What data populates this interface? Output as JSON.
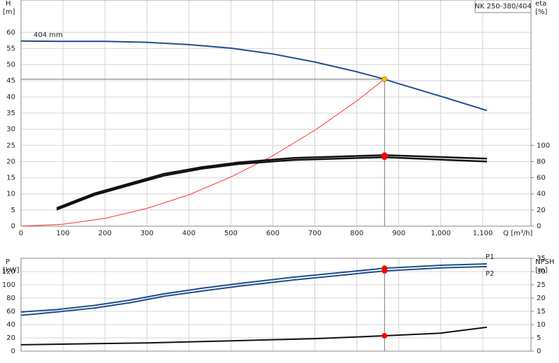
{
  "chart_data": [
    {
      "type": "line",
      "title": "NK 250-380/404",
      "xlabel": "Q [m³/h]",
      "ylabel": "H",
      "yunit": "[m]",
      "y2label": "eta",
      "y2unit": "[%]",
      "xlim": [
        0,
        1215
      ],
      "xticks": [
        0,
        100,
        200,
        300,
        400,
        500,
        600,
        700,
        800,
        900,
        {
          "value": 1000,
          "label": "1,000"
        },
        {
          "value": 1100,
          "label": "1,100"
        }
      ],
      "ylim": [
        0,
        70
      ],
      "yticks": [
        0,
        5,
        10,
        15,
        20,
        25,
        30,
        35,
        40,
        45,
        50,
        55,
        60
      ],
      "y2lim": [
        0,
        280
      ],
      "y2ticks": [
        0,
        20,
        40,
        60,
        80,
        100
      ],
      "grid": true,
      "series": [
        {
          "name": "404 mm",
          "color": "#1f4e8c",
          "x": [
            0,
            100,
            200,
            300,
            400,
            500,
            600,
            700,
            800,
            866,
            900,
            1000,
            1110
          ],
          "values": [
            57.3,
            57.2,
            57.2,
            56.9,
            56.2,
            55.1,
            53.3,
            50.8,
            47.8,
            45.5,
            44.1,
            40.2,
            35.8
          ]
        },
        {
          "color": "#ff3030",
          "x": [
            0,
            100,
            200,
            300,
            400,
            500,
            600,
            700,
            800,
            866
          ],
          "values": [
            0,
            0.6,
            2.4,
            5.5,
            9.7,
            15.2,
            21.8,
            29.7,
            38.8,
            45.5
          ]
        },
        {
          "color": "#111111",
          "axis": "y2",
          "x": [
            85,
            175,
            260,
            340,
            430,
            520,
            650,
            866,
            1110
          ],
          "values": [
            22.4,
            40.5,
            53,
            64.7,
            73,
            79,
            84.5,
            88,
            83.6
          ]
        },
        {
          "color": "#111111",
          "axis": "y2",
          "x": [
            85,
            175,
            260,
            340,
            430,
            520,
            650,
            866,
            1110
          ],
          "values": [
            20.5,
            38.5,
            51,
            62.5,
            71,
            77,
            82,
            85.3,
            80
          ]
        }
      ],
      "markers": [
        {
          "x": 866,
          "y": 45.5,
          "color": "#ffc000"
        },
        {
          "x": 866,
          "y": 88,
          "axis": "y2",
          "color": "#ff0000"
        },
        {
          "x": 866,
          "y": 85.3,
          "axis": "y2",
          "color": "#ff0000"
        }
      ]
    },
    {
      "type": "line",
      "ylabel": "P",
      "yunit": "[kW]",
      "y2label": "NPSH",
      "y2unit": "[m]",
      "xlim": [
        0,
        1215
      ],
      "xticks": [
        0,
        100,
        200,
        300,
        400,
        500,
        600,
        700,
        800,
        900,
        1000,
        1100
      ],
      "ylim": [
        0,
        140
      ],
      "yticks": [
        0,
        20,
        40,
        60,
        80,
        100,
        120
      ],
      "y2lim": [
        0,
        35
      ],
      "y2ticks": [
        0,
        5,
        10,
        15,
        20,
        25,
        30,
        35
      ],
      "grid": true,
      "series": [
        {
          "name": "P1",
          "color": "#1f4e8c",
          "x": [
            0,
            85,
            175,
            260,
            340,
            430,
            520,
            650,
            866,
            1000,
            1110
          ],
          "values": [
            59,
            62.6,
            68.9,
            77,
            86.3,
            94.7,
            102,
            111.6,
            125,
            129.5,
            131.6
          ]
        },
        {
          "name": "P2",
          "color": "#1f4e8c",
          "x": [
            0,
            85,
            175,
            260,
            340,
            430,
            520,
            650,
            866,
            1000,
            1110
          ],
          "values": [
            54,
            59,
            65,
            73,
            82.6,
            90.5,
            98,
            107.4,
            121,
            125.5,
            127.5
          ]
        },
        {
          "color": "#111111",
          "axis": "y2",
          "x": [
            0,
            85,
            300,
            500,
            700,
            866,
            1000,
            1110
          ],
          "values": [
            2.4,
            2.6,
            3.1,
            3.9,
            4.7,
            5.8,
            6.8,
            9
          ]
        }
      ],
      "markers": [
        {
          "x": 866,
          "y": 125,
          "color": "#ff0000"
        },
        {
          "x": 866,
          "y": 121,
          "color": "#ff0000"
        },
        {
          "x": 866,
          "y": 5.8,
          "axis": "y2",
          "color": "#ff0000"
        }
      ]
    }
  ]
}
